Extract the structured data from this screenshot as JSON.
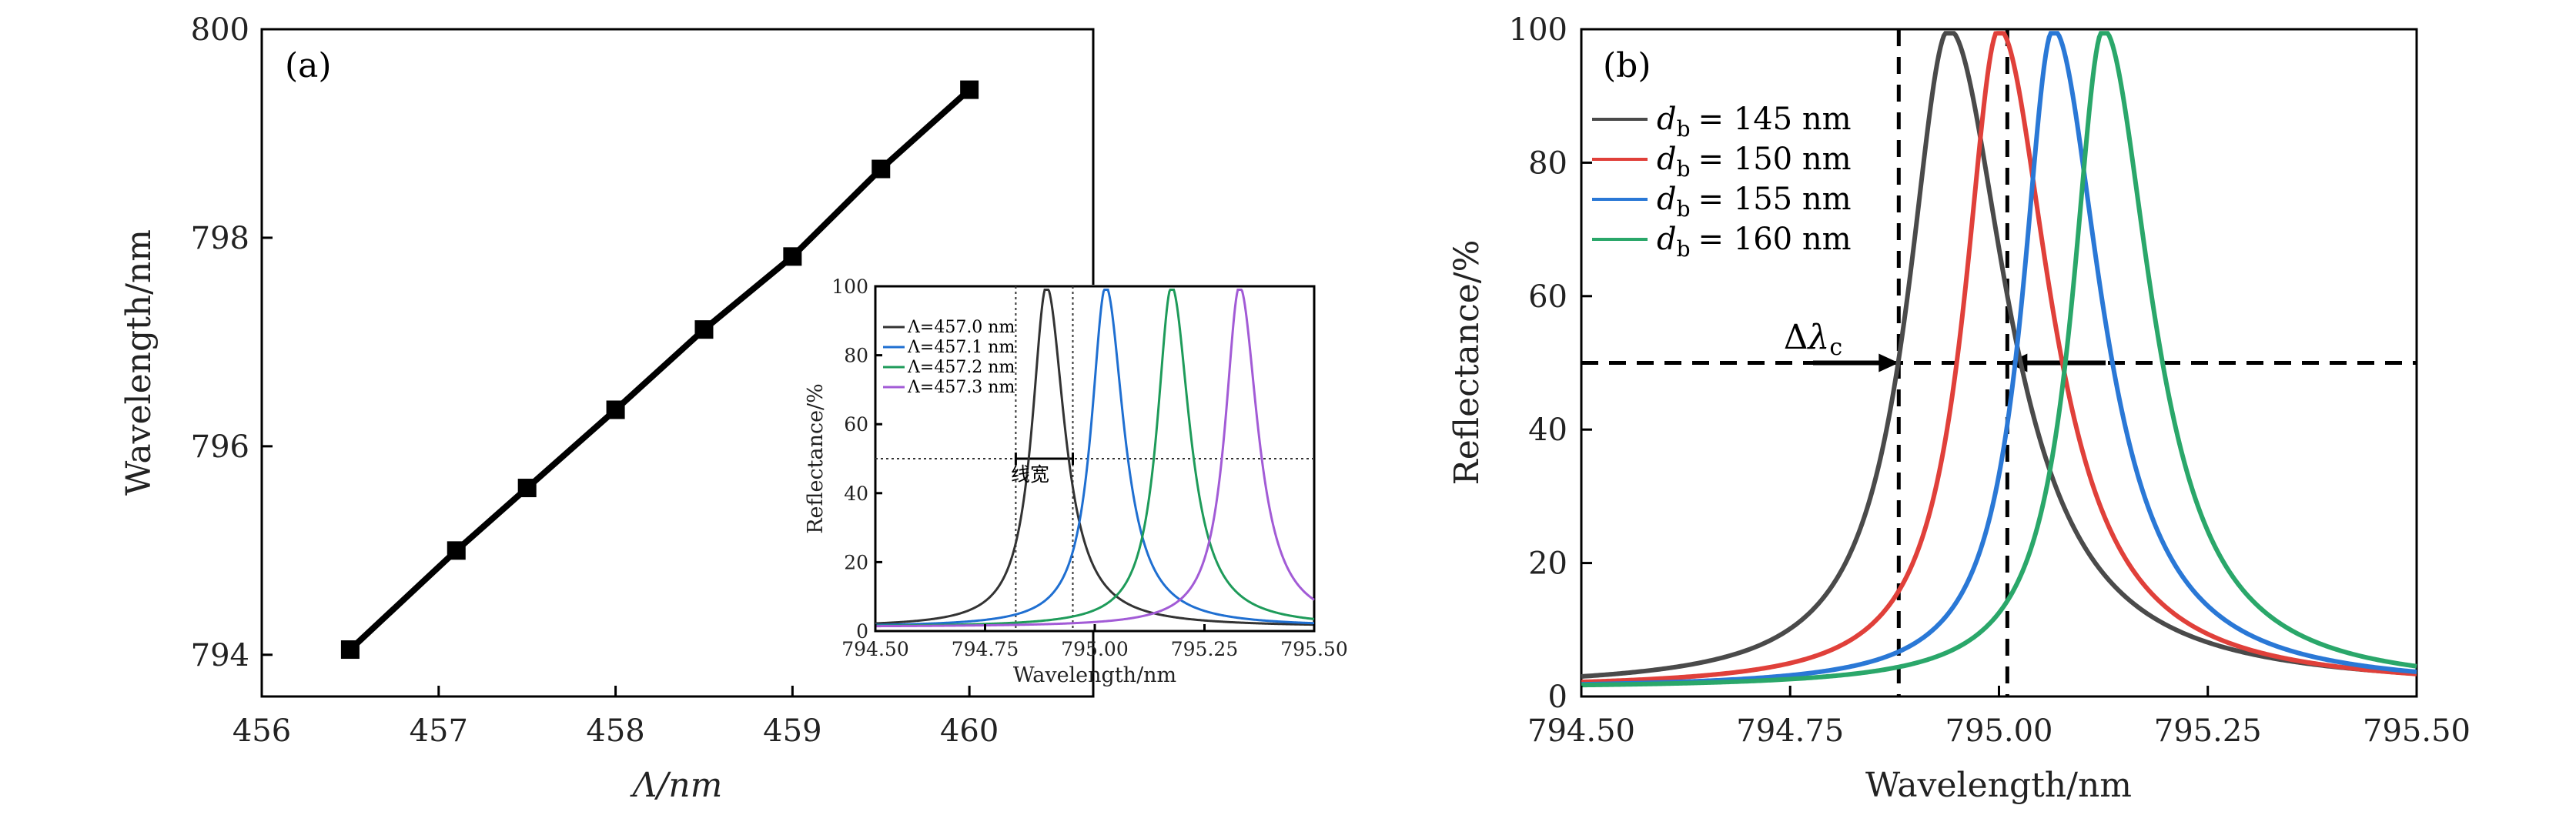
{
  "chart_data": [
    {
      "panel": "(a)",
      "type": "line",
      "xlabel": "Λ/nm",
      "ylabel": "Wavelength/nm",
      "xlim": [
        456,
        460.7
      ],
      "ylim": [
        793.6,
        800
      ],
      "xticks": [
        456,
        457,
        458,
        459,
        460
      ],
      "yticks": [
        794,
        796,
        798,
        800
      ],
      "marker": "square",
      "color": "#000000",
      "x": [
        456.5,
        457.1,
        457.5,
        458.0,
        458.5,
        459.0,
        459.5,
        460.0
      ],
      "y": [
        794.05,
        795.0,
        795.6,
        796.35,
        797.12,
        797.82,
        798.66,
        799.42
      ],
      "inset": {
        "type": "line",
        "xlabel": "Wavelength/nm",
        "ylabel": "Reflectance/%",
        "xlim": [
          794.5,
          795.5
        ],
        "ylim": [
          0,
          100
        ],
        "xticks": [
          794.5,
          794.75,
          795.0,
          795.25,
          795.5
        ],
        "xtick_labels": [
          "794.50",
          "794.75",
          "795.00",
          "795.25",
          "795.50"
        ],
        "yticks": [
          0,
          20,
          40,
          60,
          80,
          100
        ],
        "annotation": "线宽",
        "half_max_level": 50,
        "dotted_lines_x": [
          794.82,
          794.95
        ],
        "series": [
          {
            "name": "Λ=457.0 nm",
            "color": "#333333",
            "center": 794.89,
            "hw_left": 0.04,
            "hw_right": 0.05
          },
          {
            "name": "Λ=457.1 nm",
            "color": "#1f6fd1",
            "center": 795.025,
            "hw_left": 0.04,
            "hw_right": 0.05
          },
          {
            "name": "Λ=457.2 nm",
            "color": "#1e9b5a",
            "center": 795.175,
            "hw_left": 0.04,
            "hw_right": 0.05
          },
          {
            "name": "Λ=457.3 nm",
            "color": "#a25bd6",
            "center": 795.33,
            "hw_left": 0.04,
            "hw_right": 0.05
          }
        ]
      }
    },
    {
      "panel": "(b)",
      "type": "line",
      "xlabel": "Wavelength/nm",
      "ylabel": "Reflectance/%",
      "xlim": [
        794.5,
        795.5
      ],
      "ylim": [
        0,
        100
      ],
      "xticks": [
        794.5,
        794.75,
        795.0,
        795.25,
        795.5
      ],
      "xtick_labels": [
        "794.50",
        "794.75",
        "795.00",
        "795.25",
        "795.50"
      ],
      "yticks": [
        0,
        20,
        40,
        60,
        80,
        100
      ],
      "annotation": "Δλc",
      "half_max_level": 50,
      "dashed_lines_x": [
        794.88,
        795.01
      ],
      "legend_position": "top-left",
      "series": [
        {
          "name_base": "d",
          "name_sub": "b",
          "name_rest": "= 145 nm",
          "color": "#4a4a4a",
          "center": 794.94,
          "hw_left": 0.06,
          "hw_right": 0.085
        },
        {
          "name_base": "d",
          "name_sub": "b",
          "name_rest": "= 150 nm",
          "color": "#e0403a",
          "center": 795.0,
          "hw_left": 0.05,
          "hw_right": 0.075
        },
        {
          "name_base": "d",
          "name_sub": "b",
          "name_rest": "= 155 nm",
          "color": "#2a78d6",
          "center": 795.065,
          "hw_left": 0.045,
          "hw_right": 0.07
        },
        {
          "name_base": "d",
          "name_sub": "b",
          "name_rest": "= 160 nm",
          "color": "#2aa76a",
          "center": 795.125,
          "hw_left": 0.045,
          "hw_right": 0.07
        }
      ]
    }
  ]
}
